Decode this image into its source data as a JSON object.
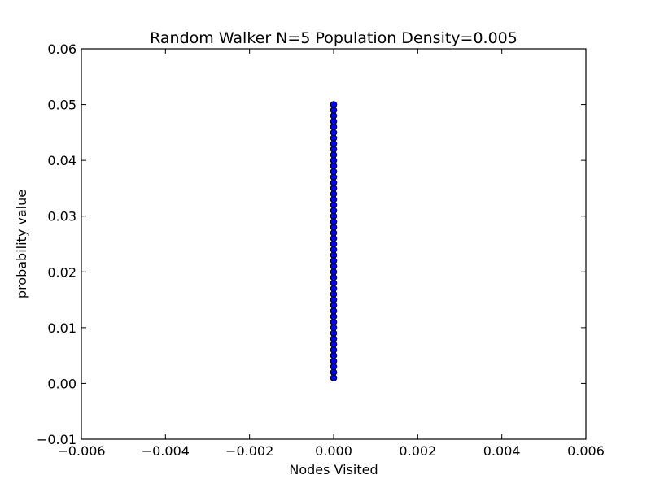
{
  "chart_data": {
    "type": "scatter",
    "title": "Random Walker N=5 Population Density=0.005",
    "xlabel": "Nodes Visited",
    "ylabel": "probability value",
    "xlim": [
      -0.006,
      0.006
    ],
    "ylim": [
      -0.01,
      0.06
    ],
    "x_ticks": [
      -0.006,
      -0.004,
      -0.002,
      0.0,
      0.002,
      0.004,
      0.006
    ],
    "x_tick_labels": [
      "−0.006",
      "−0.004",
      "−0.002",
      "0.000",
      "0.002",
      "0.004",
      "0.006"
    ],
    "y_ticks": [
      -0.01,
      0.0,
      0.01,
      0.02,
      0.03,
      0.04,
      0.05,
      0.06
    ],
    "y_tick_labels": [
      "−0.01",
      "0.00",
      "0.01",
      "0.02",
      "0.03",
      "0.04",
      "0.05",
      "0.06"
    ],
    "grid": false,
    "series": [
      {
        "marker_color": "#0000ff",
        "edge_color": "#000000",
        "x": [
          0,
          0,
          0,
          0,
          0,
          0,
          0,
          0,
          0,
          0,
          0,
          0,
          0,
          0,
          0,
          0,
          0,
          0,
          0,
          0,
          0,
          0,
          0,
          0,
          0,
          0,
          0,
          0,
          0,
          0,
          0,
          0,
          0,
          0,
          0,
          0,
          0,
          0,
          0,
          0,
          0,
          0,
          0,
          0,
          0,
          0,
          0,
          0,
          0,
          0
        ],
        "y": [
          0.001,
          0.002,
          0.003,
          0.004,
          0.005,
          0.006,
          0.007,
          0.008,
          0.009,
          0.01,
          0.011,
          0.012,
          0.013,
          0.014,
          0.015,
          0.016,
          0.017,
          0.018,
          0.019,
          0.02,
          0.021,
          0.022,
          0.023,
          0.024,
          0.025,
          0.026,
          0.027,
          0.028,
          0.029,
          0.03,
          0.031,
          0.032,
          0.033,
          0.034,
          0.035,
          0.036,
          0.037,
          0.038,
          0.039,
          0.04,
          0.041,
          0.042,
          0.043,
          0.044,
          0.045,
          0.046,
          0.047,
          0.048,
          0.049,
          0.05
        ]
      }
    ]
  }
}
